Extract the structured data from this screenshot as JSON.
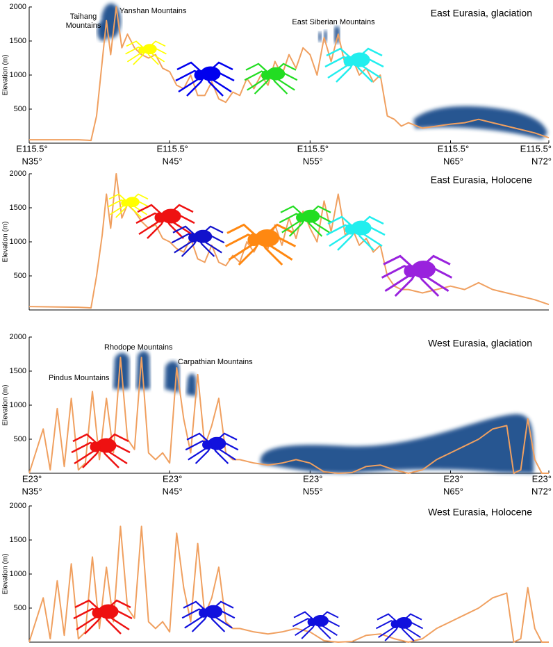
{
  "chart_data": [
    {
      "type": "line",
      "title": "East Eurasia, glaciation",
      "ylabel": "Elevation (m)",
      "color": "#f0a060",
      "annotations": [
        [
          "Yanshan Mountains"
        ],
        [
          "Taihang",
          "Mountains"
        ],
        [
          "East Siberian Mountains"
        ]
      ],
      "xlim": [
        35,
        72
      ],
      "ylim": [
        0,
        2000
      ],
      "yticks": [
        500,
        1000,
        1500,
        2000
      ],
      "xticks": [
        {
          "value": 35,
          "label": "N35°"
        },
        {
          "value": 45,
          "label": "N45°"
        },
        {
          "value": 55,
          "label": "N55°"
        },
        {
          "value": 65,
          "label": "N65°"
        },
        {
          "value": 72,
          "label": "N72°"
        }
      ],
      "xtick_sublabels": [
        "E115.5°",
        "E115.5°",
        "E115.5°",
        "E115.5°",
        "E115.5°"
      ],
      "x": [
        35,
        38.5,
        39.4,
        39.8,
        40.2,
        40.5,
        40.8,
        41.2,
        41.6,
        42,
        42.5,
        43,
        43.5,
        44,
        44.5,
        45,
        45.5,
        46,
        46.5,
        47,
        47.5,
        48,
        48.5,
        49,
        49.5,
        50,
        50.5,
        51,
        51.5,
        52,
        52.5,
        53,
        53.5,
        54,
        54.5,
        55,
        55.5,
        56,
        56.5,
        57,
        57.5,
        58,
        58.5,
        59,
        59.5,
        60,
        60.5,
        61,
        61.5,
        62,
        63,
        64,
        65,
        66,
        67,
        68,
        69,
        70,
        71,
        72
      ],
      "values": [
        50,
        50,
        40,
        400,
        1200,
        1800,
        1300,
        2000,
        1400,
        1600,
        1400,
        1300,
        1250,
        1300,
        1100,
        1050,
        850,
        800,
        1000,
        700,
        700,
        900,
        650,
        600,
        750,
        700,
        950,
        800,
        1000,
        850,
        1200,
        1000,
        1300,
        1100,
        1400,
        1300,
        1000,
        1550,
        1200,
        1600,
        1150,
        1250,
        1000,
        1100,
        900,
        1000,
        400,
        350,
        250,
        300,
        220,
        250,
        280,
        300,
        350,
        300,
        250,
        200,
        150,
        80
      ]
    },
    {
      "type": "line",
      "title": "East Eurasia, Holocene",
      "ylabel": "Elevation (m)",
      "color": "#f0a060",
      "xlim": [
        35,
        72
      ],
      "ylim": [
        0,
        2000
      ],
      "yticks": [
        500,
        1000,
        1500,
        2000
      ],
      "x": [
        35,
        38.5,
        39.4,
        39.8,
        40.2,
        40.5,
        40.8,
        41.2,
        41.6,
        42,
        42.5,
        43,
        43.5,
        44,
        44.5,
        45,
        45.5,
        46,
        46.5,
        47,
        47.5,
        48,
        48.5,
        49,
        49.5,
        50,
        50.5,
        51,
        51.5,
        52,
        52.5,
        53,
        53.5,
        54,
        54.5,
        55,
        55.5,
        56,
        56.5,
        57,
        57.5,
        58,
        58.5,
        59,
        59.5,
        60,
        60.5,
        61,
        61.5,
        62,
        63,
        64,
        65,
        66,
        67,
        68,
        69,
        70,
        71,
        72
      ],
      "values": [
        50,
        40,
        30,
        500,
        1100,
        1700,
        1200,
        2000,
        1350,
        1550,
        1450,
        1300,
        1200,
        1250,
        1050,
        1000,
        900,
        850,
        1050,
        750,
        700,
        950,
        700,
        650,
        800,
        700,
        1000,
        850,
        1050,
        900,
        1250,
        950,
        1350,
        1050,
        1450,
        1200,
        1000,
        1600,
        1150,
        1700,
        1100,
        1200,
        950,
        1050,
        850,
        950,
        500,
        350,
        300,
        300,
        250,
        300,
        350,
        300,
        400,
        300,
        250,
        200,
        150,
        80
      ]
    },
    {
      "type": "line",
      "title": "West Eurasia, glaciation",
      "ylabel": "Elevation (m)",
      "color": "#f0a060",
      "annotations": [
        [
          "Rhodope Mountains"
        ],
        [
          "Pindus Mountains"
        ],
        [
          "Carpathian Mountains"
        ]
      ],
      "xlim": [
        35,
        72
      ],
      "ylim": [
        0,
        2000
      ],
      "yticks": [
        500,
        1000,
        1500,
        2000
      ],
      "xticks": [
        {
          "value": 35,
          "label": "N35°"
        },
        {
          "value": 45,
          "label": "N45°"
        },
        {
          "value": 55,
          "label": "N55°"
        },
        {
          "value": 65,
          "label": "N65°"
        },
        {
          "value": 72,
          "label": "N72°"
        }
      ],
      "xtick_sublabels": [
        "E23°",
        "E23°",
        "E23°",
        "E23°",
        "E23°"
      ],
      "x": [
        35,
        36,
        36.5,
        37,
        37.5,
        38,
        38.5,
        39,
        39.5,
        40,
        40.5,
        41,
        41.5,
        42,
        42.5,
        43,
        43.5,
        44,
        44.5,
        45,
        45.5,
        46,
        46.5,
        47,
        47.5,
        48,
        48.5,
        49,
        49.5,
        50,
        51,
        52,
        53,
        54,
        55,
        56,
        57,
        58,
        59,
        60,
        61,
        62,
        63,
        64,
        65,
        66,
        67,
        68,
        69,
        69.5,
        70,
        70.5,
        71,
        71.5,
        72
      ],
      "values": [
        0,
        650,
        50,
        950,
        100,
        1100,
        50,
        150,
        1200,
        200,
        1100,
        300,
        1700,
        500,
        350,
        1700,
        300,
        200,
        300,
        150,
        1550,
        800,
        300,
        1450,
        400,
        700,
        1100,
        300,
        200,
        200,
        150,
        120,
        150,
        200,
        150,
        20,
        0,
        10,
        100,
        120,
        50,
        0,
        50,
        200,
        300,
        400,
        500,
        650,
        700,
        0,
        50,
        800,
        200,
        0,
        0
      ]
    },
    {
      "type": "line",
      "title": "West Eurasia, Holocene",
      "ylabel": "Elevation (m)",
      "color": "#f0a060",
      "xlim": [
        35,
        72
      ],
      "ylim": [
        0,
        2000
      ],
      "yticks": [
        500,
        1000,
        1500,
        2000
      ],
      "x": [
        35,
        36,
        36.5,
        37,
        37.5,
        38,
        38.5,
        39,
        39.5,
        40,
        40.5,
        41,
        41.5,
        42,
        42.5,
        43,
        43.5,
        44,
        44.5,
        45,
        45.5,
        46,
        46.5,
        47,
        47.5,
        48,
        48.5,
        49,
        49.5,
        50,
        51,
        52,
        53,
        54,
        55,
        56,
        57,
        58,
        59,
        60,
        61,
        62,
        63,
        64,
        65,
        66,
        67,
        68,
        69,
        69.5,
        70,
        70.5,
        71,
        71.5,
        72
      ],
      "values": [
        0,
        650,
        50,
        900,
        100,
        1150,
        50,
        150,
        1250,
        200,
        1100,
        300,
        1700,
        500,
        350,
        1700,
        300,
        200,
        300,
        150,
        1600,
        800,
        300,
        1450,
        400,
        650,
        1100,
        300,
        200,
        200,
        150,
        120,
        150,
        200,
        150,
        20,
        0,
        10,
        100,
        120,
        50,
        0,
        50,
        200,
        300,
        400,
        500,
        650,
        720,
        0,
        50,
        800,
        200,
        0,
        0
      ]
    }
  ]
}
